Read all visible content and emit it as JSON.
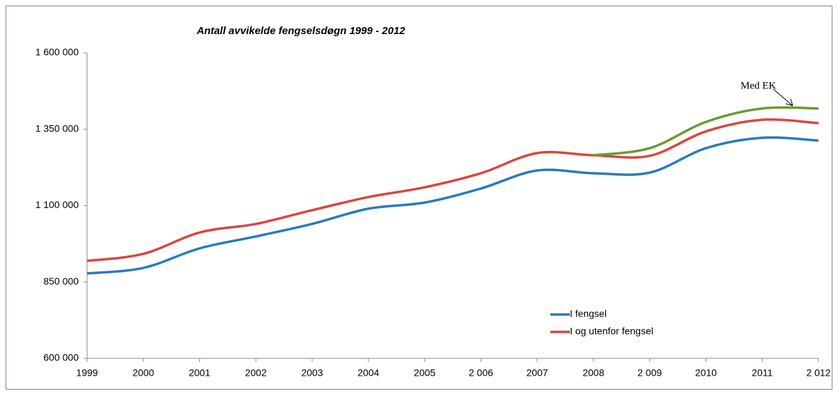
{
  "chart_data": {
    "type": "line",
    "title": "Antall avvikelde fengselsdøgn 1999 - 2012",
    "categories": [
      "1999",
      "2000",
      "2001",
      "2002",
      "2003",
      "2004",
      "2005",
      "2 006",
      "2007",
      "2008",
      "2 009",
      "2010",
      "2011",
      "2 012"
    ],
    "series": [
      {
        "name": "I  fengsel",
        "color": "#2a7ab9",
        "values": [
          878000,
          896000,
          960000,
          999000,
          1040000,
          1090000,
          1110000,
          1156000,
          1215000,
          1206000,
          1208000,
          1288000,
          1322000,
          1313000
        ]
      },
      {
        "name": "I og utenfor fengsel",
        "color": "#d9463f",
        "values": [
          919000,
          942000,
          1012000,
          1040000,
          1085000,
          1128000,
          1160000,
          1206000,
          1272000,
          1265000,
          1263000,
          1343000,
          1381000,
          1370000
        ]
      },
      {
        "color": "#6a9a35",
        "values": [
          null,
          null,
          null,
          null,
          null,
          null,
          null,
          null,
          null,
          1265000,
          1288000,
          1374000,
          1418000,
          1418000
        ]
      }
    ],
    "annotation": {
      "text": "Med EK"
    },
    "ylim": [
      600000,
      1600000
    ],
    "yticks": [
      {
        "value": 600000,
        "label": "600 000"
      },
      {
        "value": 850000,
        "label": "850 000"
      },
      {
        "value": 1100000,
        "label": "1 100 000"
      },
      {
        "value": 1350000,
        "label": "1 350 000"
      },
      {
        "value": 1600000,
        "label": "1 600 000"
      }
    ],
    "grid": false,
    "smooth": true,
    "legend": "lower right"
  }
}
